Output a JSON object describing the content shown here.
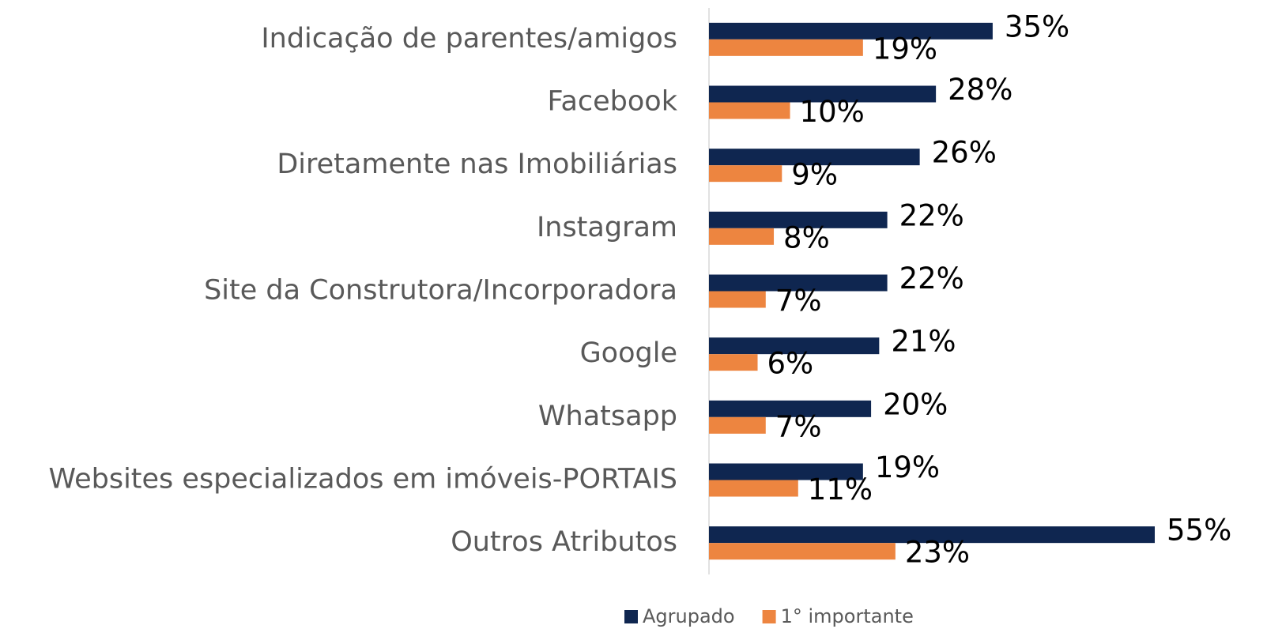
{
  "chart_data": {
    "type": "bar",
    "orientation": "horizontal",
    "categories": [
      "Indicação de parentes/amigos",
      "Facebook",
      "Diretamente nas Imobiliárias",
      "Instagram",
      "Site da Construtora/Incorporadora",
      "Google",
      "Whatsapp",
      "Websites especializados em imóveis-PORTAIS",
      "Outros Atributos"
    ],
    "series": [
      {
        "name": "Agrupado",
        "color": "#0f2650",
        "values": [
          35,
          28,
          26,
          22,
          22,
          21,
          20,
          19,
          55
        ],
        "value_labels": [
          "35%",
          "28%",
          "26%",
          "22%",
          "22%",
          "21%",
          "20%",
          "19%",
          "55%"
        ]
      },
      {
        "name": "1° importante",
        "color": "#ed8540",
        "values": [
          19,
          10,
          9,
          8,
          7,
          6,
          7,
          11,
          23
        ],
        "value_labels": [
          "19%",
          "10%",
          "9%",
          "8%",
          "7%",
          "6%",
          "7%",
          "11%",
          "23%"
        ]
      }
    ],
    "xlim": [
      0,
      55
    ],
    "legend": "bottom"
  }
}
